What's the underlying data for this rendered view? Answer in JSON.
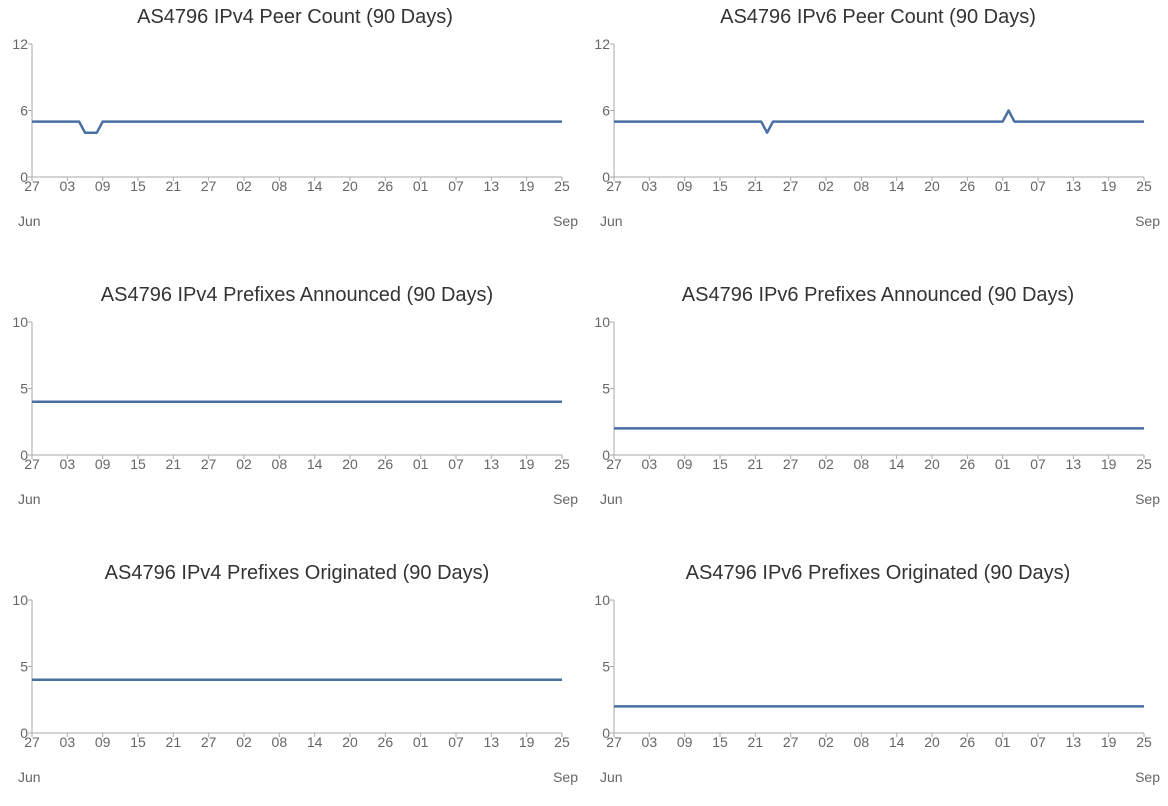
{
  "chart_data": [
    {
      "type": "line",
      "title": "AS4796 IPv4 Peer Count (90 Days)",
      "xlabel": "",
      "ylabel": "",
      "ylim": [
        0,
        12
      ],
      "y_ticks": [
        0,
        6,
        12
      ],
      "x_tick_labels": [
        "27",
        "03",
        "09",
        "15",
        "21",
        "27",
        "02",
        "08",
        "14",
        "20",
        "26",
        "01",
        "07",
        "13",
        "19",
        "25"
      ],
      "x_month_labels": {
        "start": "Jun",
        "end": "Sep"
      },
      "x_range_days": [
        0,
        90
      ],
      "series": [
        {
          "x": [
            0,
            8,
            9,
            11,
            12,
            90
          ],
          "values": [
            5,
            5,
            4,
            4,
            5,
            5
          ]
        }
      ],
      "line_color": "#4a6fa5"
    },
    {
      "type": "line",
      "title": "AS4796 IPv6 Peer Count (90 Days)",
      "xlabel": "",
      "ylabel": "",
      "ylim": [
        0,
        12
      ],
      "y_ticks": [
        0,
        6,
        12
      ],
      "x_tick_labels": [
        "27",
        "03",
        "09",
        "15",
        "21",
        "27",
        "02",
        "08",
        "14",
        "20",
        "26",
        "01",
        "07",
        "13",
        "19",
        "25"
      ],
      "x_month_labels": {
        "start": "Jun",
        "end": "Sep"
      },
      "x_range_days": [
        0,
        90
      ],
      "series": [
        {
          "x": [
            0,
            25,
            26,
            27,
            66,
            67,
            68,
            90
          ],
          "values": [
            5,
            5,
            4,
            5,
            5,
            6,
            5,
            5
          ]
        }
      ],
      "line_color": "#4a6fa5"
    },
    {
      "type": "line",
      "title": "AS4796 IPv4 Prefixes Announced (90 Days)",
      "xlabel": "",
      "ylabel": "",
      "ylim": [
        0,
        10
      ],
      "y_ticks": [
        0,
        5,
        10
      ],
      "x_tick_labels": [
        "27",
        "03",
        "09",
        "15",
        "21",
        "27",
        "02",
        "08",
        "14",
        "20",
        "26",
        "01",
        "07",
        "13",
        "19",
        "25"
      ],
      "x_month_labels": {
        "start": "Jun",
        "end": "Sep"
      },
      "x_range_days": [
        0,
        90
      ],
      "series": [
        {
          "x": [
            0,
            90
          ],
          "values": [
            4,
            4
          ]
        }
      ],
      "line_color": "#4a6fa5"
    },
    {
      "type": "line",
      "title": "AS4796 IPv6 Prefixes Announced (90 Days)",
      "xlabel": "",
      "ylabel": "",
      "ylim": [
        0,
        10
      ],
      "y_ticks": [
        0,
        5,
        10
      ],
      "x_tick_labels": [
        "27",
        "03",
        "09",
        "15",
        "21",
        "27",
        "02",
        "08",
        "14",
        "20",
        "26",
        "01",
        "07",
        "13",
        "19",
        "25"
      ],
      "x_month_labels": {
        "start": "Jun",
        "end": "Sep"
      },
      "x_range_days": [
        0,
        90
      ],
      "series": [
        {
          "x": [
            0,
            90
          ],
          "values": [
            2,
            2
          ]
        }
      ],
      "line_color": "#4a6fa5"
    },
    {
      "type": "line",
      "title": "AS4796 IPv4 Prefixes Originated (90 Days)",
      "xlabel": "",
      "ylabel": "",
      "ylim": [
        0,
        10
      ],
      "y_ticks": [
        0,
        5,
        10
      ],
      "x_tick_labels": [
        "27",
        "03",
        "09",
        "15",
        "21",
        "27",
        "02",
        "08",
        "14",
        "20",
        "26",
        "01",
        "07",
        "13",
        "19",
        "25"
      ],
      "x_month_labels": {
        "start": "Jun",
        "end": "Sep"
      },
      "x_range_days": [
        0,
        90
      ],
      "series": [
        {
          "x": [
            0,
            90
          ],
          "values": [
            4,
            4
          ]
        }
      ],
      "line_color": "#4a6fa5"
    },
    {
      "type": "line",
      "title": "AS4796 IPv6 Prefixes Originated (90 Days)",
      "xlabel": "",
      "ylabel": "",
      "ylim": [
        0,
        10
      ],
      "y_ticks": [
        0,
        5,
        10
      ],
      "x_tick_labels": [
        "27",
        "03",
        "09",
        "15",
        "21",
        "27",
        "02",
        "08",
        "14",
        "20",
        "26",
        "01",
        "07",
        "13",
        "19",
        "25"
      ],
      "x_month_labels": {
        "start": "Jun",
        "end": "Sep"
      },
      "x_range_days": [
        0,
        90
      ],
      "series": [
        {
          "x": [
            0,
            90
          ],
          "values": [
            2,
            2
          ]
        }
      ],
      "line_color": "#4a6fa5"
    }
  ]
}
